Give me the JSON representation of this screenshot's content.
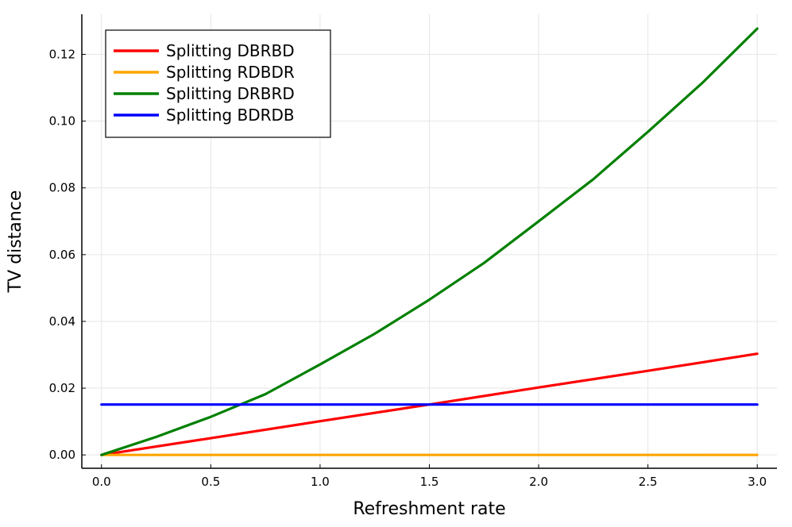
{
  "chart_data": {
    "type": "line",
    "title": "",
    "xlabel": "Refreshment rate",
    "ylabel": "TV distance",
    "xlim": [
      -0.09,
      3.09
    ],
    "ylim": [
      -0.004,
      0.132
    ],
    "xticks": [
      0.0,
      0.5,
      1.0,
      1.5,
      2.0,
      2.5,
      3.0
    ],
    "xtick_labels": [
      "0.0",
      "0.5",
      "1.0",
      "1.5",
      "2.0",
      "2.5",
      "3.0"
    ],
    "yticks": [
      0.0,
      0.02,
      0.04,
      0.06,
      0.08,
      0.1,
      0.12
    ],
    "ytick_labels": [
      "0.00",
      "0.02",
      "0.04",
      "0.06",
      "0.08",
      "0.10",
      "0.12"
    ],
    "grid": true,
    "legend_position": "top-left",
    "series": [
      {
        "name": "Splitting DBRBD",
        "color": "#ff0000",
        "x": [
          0.0,
          0.5,
          1.0,
          1.5,
          2.0,
          2.5,
          3.0
        ],
        "y": [
          0.0,
          0.005,
          0.0101,
          0.0151,
          0.0202,
          0.0252,
          0.0303
        ]
      },
      {
        "name": "Splitting RDBDR",
        "color": "#ffa500",
        "x": [
          0.0,
          0.5,
          1.0,
          1.5,
          2.0,
          2.5,
          3.0
        ],
        "y": [
          0.0,
          0.0,
          0.0,
          0.0,
          0.0,
          0.0,
          0.0
        ]
      },
      {
        "name": "Splitting DRBRD",
        "color": "#008000",
        "x": [
          0.0,
          0.25,
          0.5,
          0.75,
          1.0,
          1.25,
          1.5,
          1.75,
          2.0,
          2.25,
          2.5,
          2.75,
          3.0
        ],
        "y": [
          0.0,
          0.0054,
          0.0114,
          0.0182,
          0.0271,
          0.0363,
          0.0465,
          0.0575,
          0.07,
          0.0826,
          0.0968,
          0.1115,
          0.1277
        ]
      },
      {
        "name": "Splitting BDRDB",
        "color": "#0000ff",
        "x": [
          0.0,
          0.5,
          1.0,
          1.5,
          2.0,
          2.5,
          3.0
        ],
        "y": [
          0.0151,
          0.0151,
          0.0151,
          0.0151,
          0.0151,
          0.0151,
          0.0151
        ]
      }
    ]
  }
}
